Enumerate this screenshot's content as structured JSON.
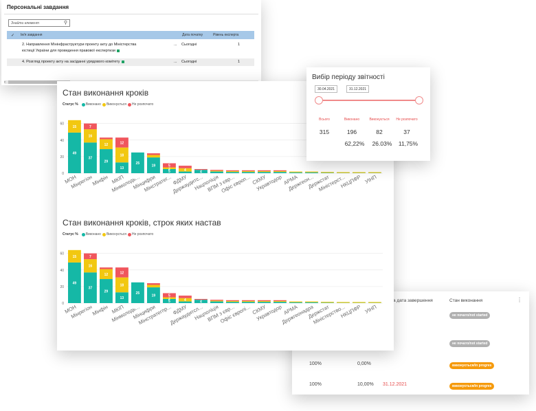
{
  "tasks": {
    "title": "Персональні завдання",
    "search_placeholder": "Знайти елемент",
    "headers": {
      "name": "Ім'я завдання",
      "date": "Дата початку",
      "level": "Рівень експерта"
    },
    "rows": [
      {
        "line1": "2. Направлення Мінінфраструктури проекту акту до Міністерства",
        "line2": "юстиції України для проведення правової експертизи",
        "more": "...",
        "date": "Сьогодні",
        "level": "1"
      },
      {
        "line1": "4. Розгляд проекту акту на засіданні урядового комітету",
        "line2": "",
        "more": "...",
        "date": "Сьогодні",
        "level": "1"
      }
    ]
  },
  "charts": {
    "colors": {
      "done": "#15b8a6",
      "progress": "#f2c811",
      "notstarted": "#f0565d",
      "grid": "#e6e6e6",
      "axis": "#888888"
    },
    "legend": {
      "label": "Статус %",
      "done": "Виконано",
      "progress": "Виконується",
      "notstarted": "Не розпочато"
    },
    "chart1_title": "Стан виконання кроків",
    "chart2_title": "Стан виконання кроків, строк яких настав"
  },
  "chart_data": [
    {
      "type": "bar",
      "stacked": true,
      "title": "Стан виконання кроків",
      "categories": [
        "МОН",
        "Мінрегіон",
        "Мінфін",
        "МКІП",
        "Мінмолодь...",
        "Мінцифри",
        "Мінстратег...",
        "ФДМУ",
        "Держаудитс...",
        "Нацполіція",
        "ВПМ з євр...",
        "Офіс європ...",
        "СКМУ",
        "Укравтодор",
        "АРМА",
        "Держгеон...",
        "Держстат",
        "Міністерст...",
        "НКЦПФР",
        "УІНП"
      ],
      "series": [
        {
          "name": "Виконано",
          "values": [
            49,
            37,
            29,
            13,
            25,
            19,
            5,
            2,
            4,
            2,
            1.5,
            1.5,
            1.5,
            1.5,
            1,
            1,
            0.5,
            0.3,
            0.3,
            0.3
          ],
          "labels": [
            "49",
            "37",
            "29",
            "13",
            "25",
            "19",
            "5",
            "",
            "4",
            "",
            "",
            "",
            "",
            "",
            "",
            "",
            "",
            "",
            "",
            ""
          ]
        },
        {
          "name": "Виконується",
          "values": [
            15,
            16,
            12,
            18,
            0,
            3,
            2,
            4,
            0,
            1,
            1,
            1,
            1,
            1,
            1,
            1,
            1,
            1,
            1,
            1
          ],
          "labels": [
            "15",
            "16",
            "12",
            "18",
            "",
            "",
            "2",
            "4",
            "",
            "",
            "",
            "",
            "",
            "",
            "",
            "",
            "",
            "",
            "",
            ""
          ]
        },
        {
          "name": "Не розпочато",
          "values": [
            0,
            7,
            2,
            12,
            0,
            2,
            5,
            3,
            1,
            1,
            1,
            1,
            1,
            1,
            0,
            0,
            0,
            0,
            0,
            0
          ],
          "labels": [
            "",
            "7",
            "",
            "12",
            "",
            "",
            "5",
            "",
            "",
            "",
            "",
            "",
            "",
            "",
            "",
            "",
            "",
            "",
            "",
            ""
          ]
        }
      ],
      "yticks": [
        0,
        20,
        40,
        60
      ],
      "ylim": [
        0,
        68
      ]
    },
    {
      "type": "bar",
      "stacked": true,
      "title": "Стан виконання кроків, строк яких настав",
      "categories": [
        "МОН",
        "Мінрегіон",
        "Мінфін",
        "МКІП",
        "Мінмолодь...",
        "Мінцифри",
        "Мінстратегпр...",
        "ФДМУ",
        "Держаудитсл...",
        "Нацполіція",
        "ВПМ з євр...",
        "Офіс європі...",
        "СКМУ",
        "Укравтодор",
        "АРМА",
        "Держгеонадра",
        "Держстат",
        "Міністерство...",
        "НКЦПФР",
        "УІНП"
      ],
      "series": [
        {
          "name": "Виконано",
          "values": [
            49,
            37,
            29,
            13,
            25,
            19,
            5,
            2,
            4,
            2,
            1.5,
            1.5,
            1.5,
            1.5,
            1,
            1,
            0.5,
            0.3,
            0.3,
            0.3
          ],
          "labels": [
            "49",
            "37",
            "29",
            "13",
            "25",
            "19",
            "5",
            "",
            "4",
            "",
            "",
            "",
            "",
            "",
            "",
            "",
            "",
            "",
            "",
            ""
          ]
        },
        {
          "name": "Виконується",
          "values": [
            15,
            16,
            12,
            18,
            0,
            3,
            2,
            4,
            0,
            1,
            1,
            1,
            1,
            1,
            1,
            1,
            1,
            1,
            1,
            1
          ],
          "labels": [
            "15",
            "16",
            "12",
            "18",
            "",
            "",
            "2",
            "4",
            "",
            "",
            "",
            "",
            "",
            "",
            "",
            "",
            "",
            "",
            "",
            ""
          ]
        },
        {
          "name": "Не розпочато",
          "values": [
            0,
            7,
            2,
            12,
            0,
            2,
            5,
            3,
            1,
            1,
            1,
            1,
            1,
            1,
            0,
            0,
            0,
            0,
            0,
            0
          ],
          "labels": [
            "",
            "7",
            "",
            "12",
            "",
            "",
            "5",
            "",
            "",
            "",
            "",
            "",
            "",
            "",
            "",
            "",
            "",
            "",
            "",
            ""
          ]
        }
      ],
      "yticks": [
        0,
        20,
        40,
        60
      ],
      "ylim": [
        0,
        68
      ]
    }
  ],
  "period": {
    "title": "Вибір періоду звітності",
    "date_from": "30.04.2021",
    "date_to": "31.12.2021",
    "labels": {
      "total": "Всього",
      "done": "Виконано",
      "progress": "Виконується",
      "notstarted": "Не розпочато"
    },
    "counts": {
      "total": "315",
      "done": "196",
      "progress": "82",
      "notstarted": "37"
    },
    "pcts": {
      "done": "62,22%",
      "progress": "26.03%",
      "notstarted": "11,75%"
    }
  },
  "status": {
    "header_date": "ова дата завершення",
    "header_state": "Стан виконання",
    "ellipsis": "⋮",
    "rows": [
      {
        "badge": "не почато/not started",
        "color": "#b0b0b0"
      },
      {
        "badge": "не почато/not started",
        "color": "#b0b0b0"
      },
      {
        "col1": "100%",
        "col2": "0,00%",
        "date": "",
        "badge": "виконується/in progres",
        "color": "#f59a0c"
      },
      {
        "col1": "100%",
        "col2": "10,00%",
        "date": "31.12.2021",
        "badge": "виконується/in progres",
        "color": "#f59a0c"
      }
    ]
  }
}
